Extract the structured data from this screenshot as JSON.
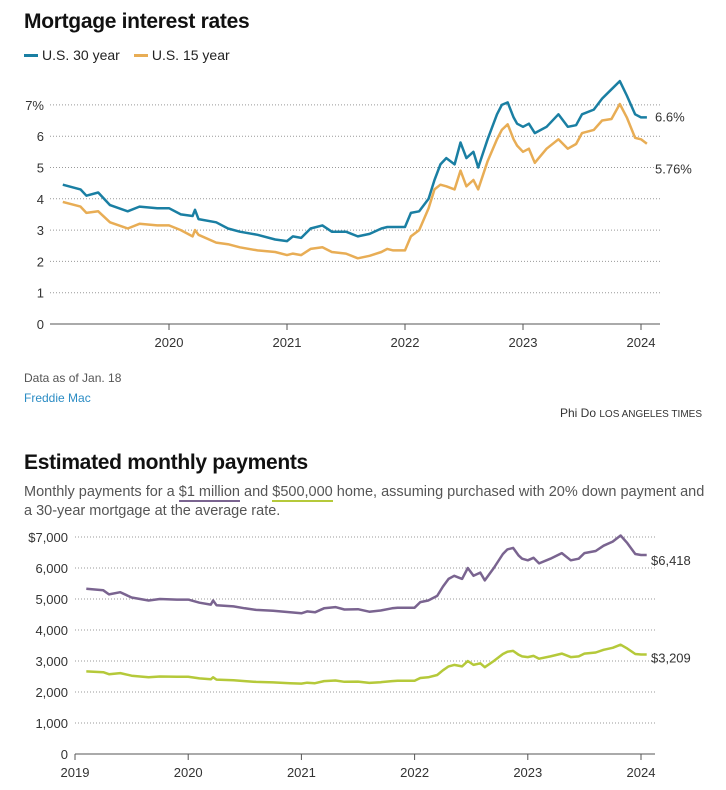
{
  "rates": {
    "title": "Mortgage interest rates",
    "note": "Data as of Jan. 18",
    "source": "Freddie Mac",
    "credit_name": "Phi Do",
    "credit_org": "LOS ANGELES TIMES"
  },
  "payments": {
    "title": "Estimated monthly payments",
    "subtitle_a": "Monthly payments for a ",
    "subtitle_1m": "$1 million",
    "subtitle_b": " and ",
    "subtitle_500k": "$500,000",
    "subtitle_c": " home, assuming purchased with 20% down payment and a 30-year mortgage at the average rate."
  },
  "chart_data": [
    {
      "type": "line",
      "xlabel": "",
      "ylabel": "",
      "ylim": [
        0,
        7.8
      ],
      "xlim": [
        2019.1,
        2024.05
      ],
      "yticks": [
        "0",
        "1",
        "2",
        "3",
        "4",
        "5",
        "6",
        "7%"
      ],
      "xticks": [
        "2020",
        "2021",
        "2022",
        "2023",
        "2024"
      ],
      "grid": true,
      "legend": "top-left",
      "x": [
        2019.1,
        2019.25,
        2019.3,
        2019.4,
        2019.5,
        2019.65,
        2019.75,
        2019.9,
        2020.0,
        2020.1,
        2020.2,
        2020.22,
        2020.25,
        2020.4,
        2020.5,
        2020.6,
        2020.75,
        2020.9,
        2021.0,
        2021.05,
        2021.12,
        2021.2,
        2021.3,
        2021.38,
        2021.5,
        2021.6,
        2021.7,
        2021.8,
        2021.85,
        2021.9,
        2022.0,
        2022.05,
        2022.12,
        2022.2,
        2022.25,
        2022.3,
        2022.35,
        2022.42,
        2022.47,
        2022.52,
        2022.58,
        2022.62,
        2022.7,
        2022.78,
        2022.82,
        2022.87,
        2022.92,
        2022.95,
        2023.0,
        2023.05,
        2023.1,
        2023.2,
        2023.3,
        2023.38,
        2023.45,
        2023.5,
        2023.6,
        2023.67,
        2023.75,
        2023.82,
        2023.88,
        2023.95,
        2024.0,
        2024.05
      ],
      "series": [
        {
          "name": "U.S. 30 year",
          "color": "#1a7fa3",
          "end_label": "6.6%",
          "values": [
            4.45,
            4.3,
            4.1,
            4.2,
            3.8,
            3.6,
            3.75,
            3.7,
            3.7,
            3.5,
            3.45,
            3.65,
            3.35,
            3.25,
            3.05,
            2.95,
            2.85,
            2.7,
            2.65,
            2.8,
            2.75,
            3.05,
            3.15,
            2.95,
            2.95,
            2.8,
            2.88,
            3.05,
            3.1,
            3.1,
            3.1,
            3.55,
            3.6,
            4.0,
            4.6,
            5.1,
            5.3,
            5.1,
            5.8,
            5.3,
            5.5,
            5.0,
            5.9,
            6.7,
            7.0,
            7.08,
            6.6,
            6.4,
            6.3,
            6.4,
            6.1,
            6.3,
            6.7,
            6.3,
            6.35,
            6.7,
            6.85,
            7.2,
            7.5,
            7.76,
            7.3,
            6.7,
            6.6,
            6.6
          ]
        },
        {
          "name": "U.S. 15 year",
          "color": "#e8ad55",
          "end_label": "5.76%",
          "values": [
            3.9,
            3.75,
            3.55,
            3.6,
            3.25,
            3.05,
            3.2,
            3.15,
            3.15,
            3.0,
            2.8,
            3.0,
            2.85,
            2.6,
            2.55,
            2.45,
            2.35,
            2.3,
            2.2,
            2.25,
            2.2,
            2.4,
            2.45,
            2.3,
            2.25,
            2.1,
            2.18,
            2.3,
            2.4,
            2.35,
            2.35,
            2.8,
            3.0,
            3.7,
            4.3,
            4.45,
            4.4,
            4.3,
            4.9,
            4.4,
            4.6,
            4.3,
            5.2,
            5.9,
            6.2,
            6.38,
            5.9,
            5.7,
            5.5,
            5.6,
            5.15,
            5.6,
            5.9,
            5.6,
            5.75,
            6.1,
            6.2,
            6.5,
            6.55,
            7.03,
            6.6,
            5.95,
            5.9,
            5.76
          ]
        }
      ]
    },
    {
      "type": "line",
      "xlabel": "",
      "ylabel": "",
      "ylim": [
        0,
        7000
      ],
      "xlim": [
        2019,
        2024.05
      ],
      "yticks": [
        "0",
        "1,000",
        "2,000",
        "3,000",
        "4,000",
        "5,000",
        "6,000",
        "$7,000"
      ],
      "xticks": [
        "2019",
        "2020",
        "2021",
        "2022",
        "2023",
        "2024"
      ],
      "grid": true,
      "x": [
        2019.1,
        2019.25,
        2019.3,
        2019.4,
        2019.5,
        2019.65,
        2019.75,
        2019.9,
        2020.0,
        2020.1,
        2020.2,
        2020.22,
        2020.25,
        2020.4,
        2020.5,
        2020.6,
        2020.75,
        2020.9,
        2021.0,
        2021.05,
        2021.12,
        2021.2,
        2021.3,
        2021.38,
        2021.5,
        2021.6,
        2021.7,
        2021.8,
        2021.85,
        2021.9,
        2022.0,
        2022.05,
        2022.12,
        2022.2,
        2022.25,
        2022.3,
        2022.35,
        2022.42,
        2022.47,
        2022.52,
        2022.58,
        2022.62,
        2022.7,
        2022.78,
        2022.82,
        2022.87,
        2022.92,
        2022.95,
        2023.0,
        2023.05,
        2023.1,
        2023.2,
        2023.3,
        2023.38,
        2023.45,
        2023.5,
        2023.6,
        2023.67,
        2023.75,
        2023.82,
        2023.88,
        2023.95,
        2024.0,
        2024.05
      ],
      "series": [
        {
          "color": "#7a6490",
          "end_label": "$6,418",
          "values": [
            5330,
            5280,
            5150,
            5220,
            5050,
            4950,
            5000,
            4980,
            4980,
            4880,
            4820,
            4950,
            4800,
            4760,
            4700,
            4650,
            4620,
            4570,
            4540,
            4600,
            4570,
            4700,
            4740,
            4660,
            4670,
            4590,
            4630,
            4700,
            4720,
            4720,
            4720,
            4900,
            4950,
            5100,
            5400,
            5650,
            5750,
            5650,
            6000,
            5750,
            5850,
            5600,
            6000,
            6450,
            6600,
            6650,
            6400,
            6300,
            6250,
            6330,
            6150,
            6300,
            6480,
            6250,
            6300,
            6480,
            6550,
            6720,
            6850,
            7050,
            6800,
            6450,
            6418,
            6418
          ]
        },
        {
          "color": "#b5c93a",
          "end_label": "$3,209",
          "values": [
            2665,
            2640,
            2575,
            2610,
            2525,
            2475,
            2500,
            2490,
            2490,
            2440,
            2410,
            2475,
            2400,
            2380,
            2350,
            2325,
            2310,
            2285,
            2270,
            2300,
            2285,
            2350,
            2370,
            2330,
            2335,
            2295,
            2315,
            2350,
            2360,
            2360,
            2360,
            2450,
            2475,
            2550,
            2700,
            2825,
            2875,
            2825,
            3000,
            2875,
            2925,
            2800,
            3000,
            3225,
            3300,
            3325,
            3200,
            3150,
            3125,
            3165,
            3075,
            3150,
            3240,
            3125,
            3150,
            3240,
            3275,
            3360,
            3425,
            3525,
            3400,
            3225,
            3209,
            3209
          ]
        }
      ]
    }
  ]
}
